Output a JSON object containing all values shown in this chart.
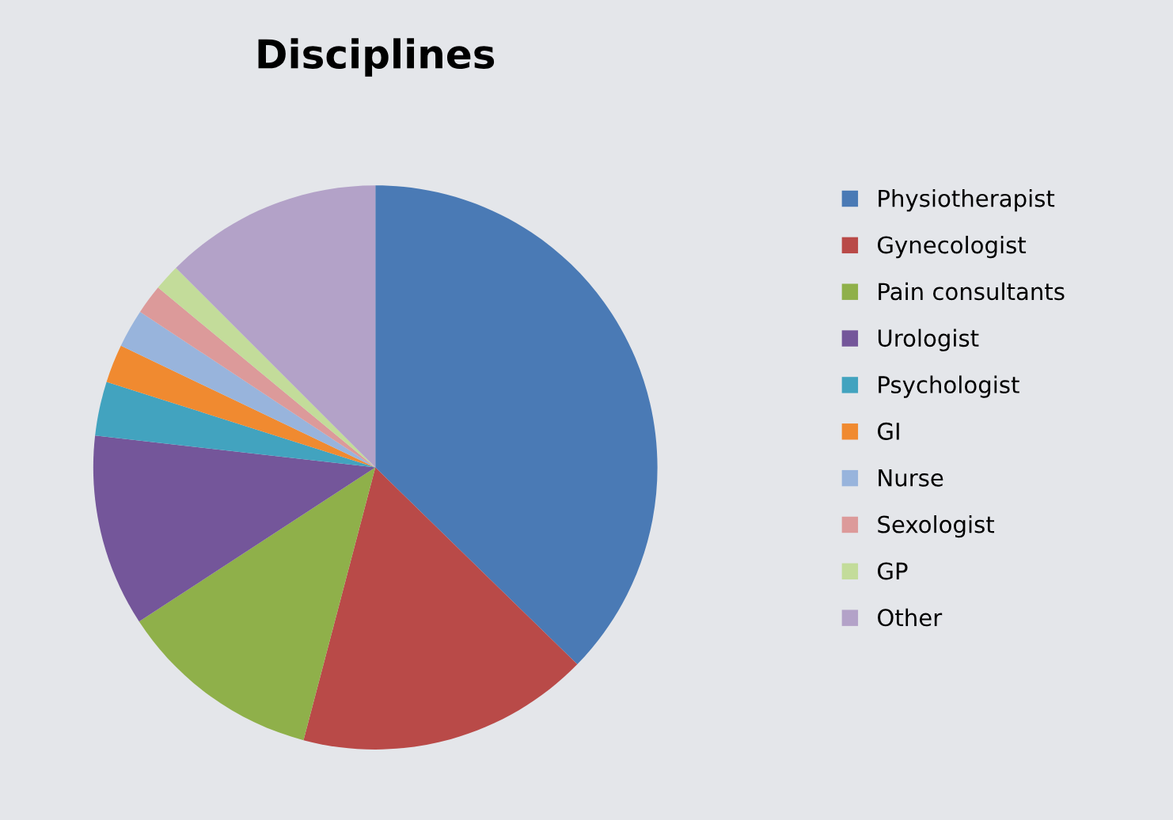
{
  "chart_data": {
    "type": "pie",
    "title": "Disciplines",
    "categories": [
      "Physiotherapist",
      "Gynecologist",
      "Pain consultants",
      "Urologist",
      "Psychologist",
      "GI",
      "Nurse",
      "Sexologist",
      "GP",
      "Other"
    ],
    "values": [
      37.3,
      16.8,
      11.7,
      11.0,
      3.1,
      2.2,
      2.2,
      1.7,
      1.5,
      12.5
    ],
    "colors": [
      "#4a7ab5",
      "#b94a48",
      "#8fb04a",
      "#74569a",
      "#42a3bf",
      "#f08a30",
      "#98b4dc",
      "#dc9a9a",
      "#c3dc9a",
      "#b3a2c8"
    ],
    "legend": "right"
  }
}
